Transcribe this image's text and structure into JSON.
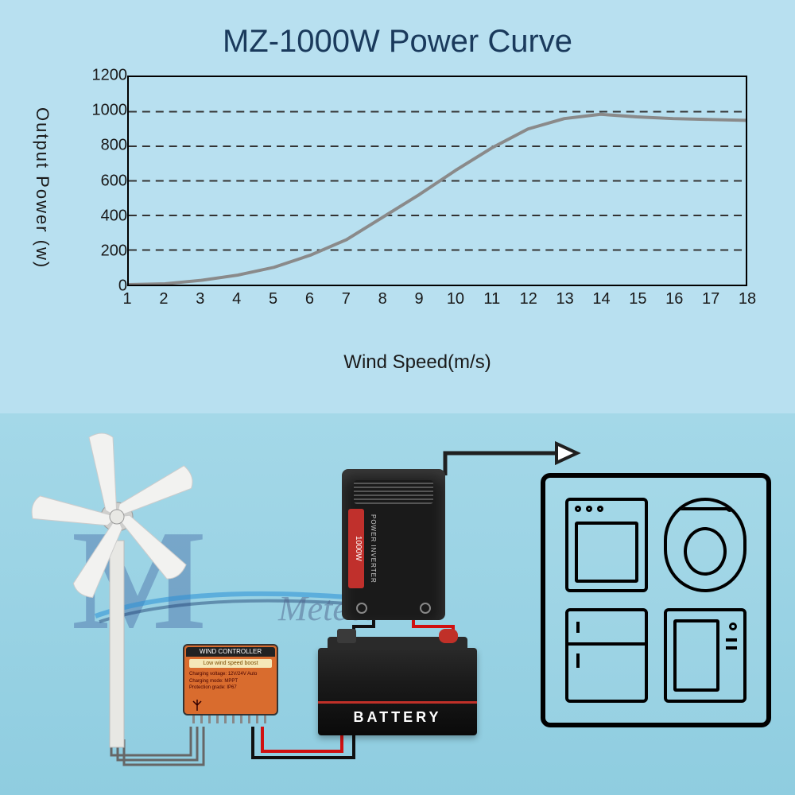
{
  "title": "MZ-1000W Power Curve",
  "chart": {
    "type": "line",
    "ylabel": "Output Power (w)",
    "xlabel": "Wind Speed(m/s)",
    "ylim": [
      0,
      1200
    ],
    "xlim": [
      1,
      18
    ],
    "yticks": [
      0,
      200,
      400,
      600,
      800,
      1000,
      1200
    ],
    "xticks": [
      1,
      2,
      3,
      4,
      5,
      6,
      7,
      8,
      9,
      10,
      11,
      12,
      13,
      14,
      15,
      16,
      17,
      18
    ],
    "grid_y": [
      200,
      400,
      600,
      800,
      1000
    ],
    "line_color": "#8a8a8a",
    "line_width": 4,
    "border_color": "#000000",
    "grid_color": "#333333",
    "background_color": "transparent",
    "tick_fontsize": 20,
    "label_fontsize": 24,
    "title_fontsize": 40,
    "data": {
      "x": [
        1,
        2,
        3,
        4,
        5,
        6,
        7,
        8,
        9,
        10,
        11,
        12,
        13,
        14,
        15,
        16,
        17,
        18
      ],
      "y": [
        0,
        5,
        25,
        55,
        100,
        170,
        260,
        390,
        520,
        660,
        790,
        900,
        960,
        985,
        970,
        960,
        955,
        950
      ]
    }
  },
  "diagram": {
    "components": {
      "turbine": {
        "label": "Wind Turbine",
        "blade_color": "#f2f2f0",
        "hub_color": "#cfcfcc"
      },
      "controller": {
        "title": "WIND CONTROLLER",
        "subtitle": "Low wind speed boost",
        "body_color": "#d96c2e"
      },
      "inverter": {
        "wattage_label": "1000W",
        "side_label": "POWER INVERTER",
        "body_color": "#1a1a1a"
      },
      "battery": {
        "label": "BATTERY",
        "body_color": "#1a1a1a",
        "terminal_pos_color": "#c03028"
      },
      "appliances": {
        "items": [
          "oven",
          "washing-machine",
          "fridge",
          "microwave"
        ],
        "border_color": "#000000"
      }
    },
    "wires": {
      "turbine_to_controller": "#555555",
      "controller_to_battery_pos": "#d01010",
      "controller_to_battery_neg": "#101010",
      "battery_to_inverter_pos": "#d01010",
      "battery_to_inverter_neg": "#101010",
      "inverter_to_appliances": "#202020",
      "arrow_fill": "#ffffff"
    }
  },
  "watermark": {
    "letter": "M",
    "text": "Meteor",
    "color": "rgba(50,80,150,0.35)"
  }
}
